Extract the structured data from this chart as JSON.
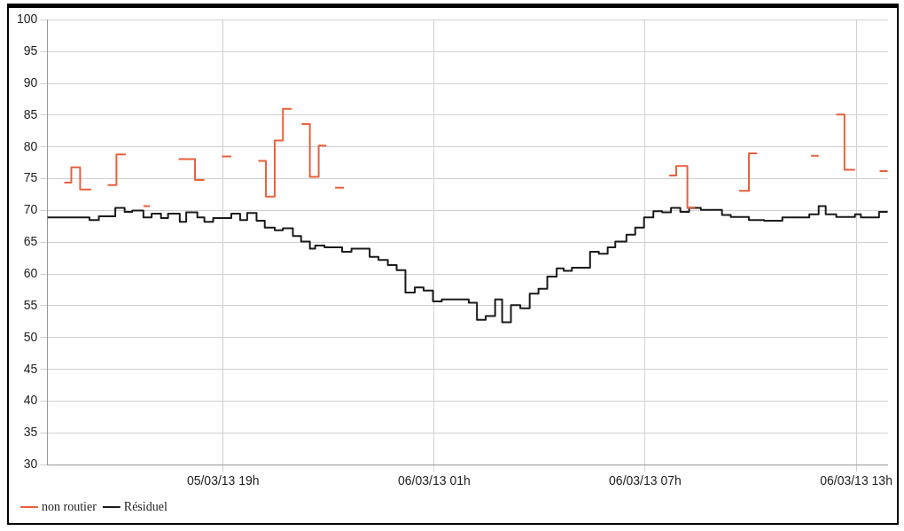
{
  "chart_data": {
    "type": "step",
    "xlim": [
      "--03-05T14:00",
      "--03-06T13:54"
    ],
    "ylim": [
      30,
      100
    ],
    "xticks": [
      {
        "value": "--03-05T19:00",
        "label": "05/03/13 19h"
      },
      {
        "value": "--03-06T01:00",
        "label": "06/03/13 01h"
      },
      {
        "value": "--03-06T07:00",
        "label": "06/03/13 07h"
      },
      {
        "value": "--03-06T13:00",
        "label": "06/03/13 13h"
      }
    ],
    "yticks": [
      30,
      35,
      40,
      45,
      50,
      55,
      60,
      65,
      70,
      75,
      80,
      85,
      90,
      95,
      100
    ],
    "grid": true,
    "legend": "bottom",
    "line_style": "solid",
    "marker": "none",
    "series": [
      {
        "name": "non routier",
        "color": "#e8603c",
        "x": [
          "--03-05T14:29",
          "--03-05T14:41",
          "--03-05T14:56",
          "--03-05T15:15",
          "--03-05T15:30",
          "--03-05T15:43",
          "--03-05T15:58",
          "--03-05T16:14",
          "--03-05T16:30",
          "--03-05T16:44",
          "--03-05T16:55",
          "--03-05T17:18",
          "--03-05T17:44",
          "--03-05T18:12",
          "--03-05T18:28",
          "--03-05T18:42",
          "--03-05T18:58",
          "--03-05T19:14",
          "--03-05T19:36",
          "--03-05T20:00",
          "--03-05T20:13",
          "--03-05T20:28",
          "--03-05T20:42",
          "--03-05T20:57",
          "--03-05T21:06",
          "--03-05T21:14",
          "--03-05T21:28",
          "--03-05T21:43",
          "--03-05T21:56",
          "--03-05T22:03",
          "--03-05T22:11",
          "--03-05T22:26",
          "--03-06T03:00",
          "--03-06T07:41",
          "--03-06T07:53",
          "--03-06T08:12",
          "--03-06T08:25",
          "--03-06T09:00",
          "--03-06T09:40",
          "--03-06T09:57",
          "--03-06T10:11",
          "--03-06T11:00",
          "--03-06T11:43",
          "--03-06T11:56",
          "--03-06T12:12",
          "--03-06T12:26",
          "--03-06T12:40",
          "--03-06T12:58",
          "--03-06T13:18",
          "--03-06T13:40",
          "--03-06T13:54"
        ],
        "values": [
          74.4,
          76.8,
          73.3,
          73.3,
          null,
          74.0,
          78.8,
          78.8,
          null,
          70.7,
          70.7,
          null,
          78.1,
          74.8,
          74.8,
          null,
          78.5,
          78.5,
          null,
          77.8,
          72.2,
          81.0,
          86.0,
          86.0,
          null,
          83.6,
          75.3,
          80.2,
          80.2,
          null,
          73.6,
          73.6,
          null,
          75.5,
          77.0,
          70.4,
          70.4,
          null,
          73.1,
          79.0,
          79.0,
          null,
          78.6,
          78.6,
          null,
          85.1,
          76.4,
          76.4,
          null,
          76.2,
          76.2
        ]
      },
      {
        "name": "Résiduel",
        "color": "#1a1a1a",
        "x": [
          "--03-05T14:00",
          "--03-05T15:12",
          "--03-05T15:28",
          "--03-05T15:56",
          "--03-05T16:12",
          "--03-05T16:25",
          "--03-05T16:44",
          "--03-05T16:58",
          "--03-05T17:14",
          "--03-05T17:26",
          "--03-05T17:46",
          "--03-05T17:57",
          "--03-05T18:16",
          "--03-05T18:28",
          "--03-05T18:43",
          "--03-05T19:14",
          "--03-05T19:29",
          "--03-05T19:41",
          "--03-05T19:57",
          "--03-05T20:11",
          "--03-05T20:28",
          "--03-05T20:42",
          "--03-05T20:59",
          "--03-05T21:13",
          "--03-05T21:28",
          "--03-05T21:37",
          "--03-05T21:53",
          "--03-05T22:23",
          "--03-05T22:29",
          "--03-05T22:39",
          "--03-05T23:10",
          "--03-05T23:25",
          "--03-05T23:41",
          "--03-05T23:56",
          "--03-06T00:11",
          "--03-06T00:27",
          "--03-06T00:42",
          "--03-06T00:58",
          "--03-06T01:13",
          "--03-06T01:59",
          "--03-06T02:13",
          "--03-06T02:28",
          "--03-06T02:44",
          "--03-06T02:56",
          "--03-06T03:11",
          "--03-06T03:27",
          "--03-06T03:43",
          "--03-06T03:58",
          "--03-06T04:13",
          "--03-06T04:29",
          "--03-06T04:41",
          "--03-06T04:55",
          "--03-06T05:26",
          "--03-06T05:41",
          "--03-06T05:56",
          "--03-06T06:09",
          "--03-06T06:28",
          "--03-06T06:43",
          "--03-06T06:58",
          "--03-06T07:14",
          "--03-06T07:29",
          "--03-06T07:44",
          "--03-06T08:00",
          "--03-06T08:15",
          "--03-06T08:35",
          "--03-06T09:11",
          "--03-06T09:26",
          "--03-06T09:57",
          "--03-06T10:23",
          "--03-06T10:54",
          "--03-06T11:40",
          "--03-06T11:56",
          "--03-06T12:08",
          "--03-06T12:26",
          "--03-06T12:58",
          "--03-06T13:08",
          "--03-06T13:39",
          "--03-06T13:54"
        ],
        "values": [
          68.9,
          68.5,
          69.1,
          70.4,
          69.8,
          70.0,
          68.9,
          69.5,
          68.8,
          69.5,
          68.2,
          69.7,
          68.9,
          68.2,
          68.8,
          69.5,
          68.5,
          69.6,
          68.4,
          67.3,
          66.9,
          67.2,
          66.0,
          65.1,
          64.0,
          64.5,
          64.2,
          63.5,
          63.5,
          64.0,
          62.7,
          62.2,
          61.4,
          60.6,
          57.1,
          57.9,
          57.4,
          55.7,
          56.0,
          55.5,
          52.8,
          53.4,
          56.0,
          52.4,
          55.1,
          54.6,
          56.9,
          57.7,
          59.6,
          60.9,
          60.5,
          61.0,
          63.5,
          63.2,
          64.2,
          65.1,
          66.2,
          67.3,
          68.9,
          69.9,
          69.7,
          70.4,
          69.8,
          70.4,
          70.1,
          69.3,
          69.0,
          68.5,
          68.4,
          68.9,
          69.4,
          70.7,
          69.4,
          69.0,
          69.4,
          68.9,
          69.8,
          69.8
        ]
      }
    ]
  }
}
